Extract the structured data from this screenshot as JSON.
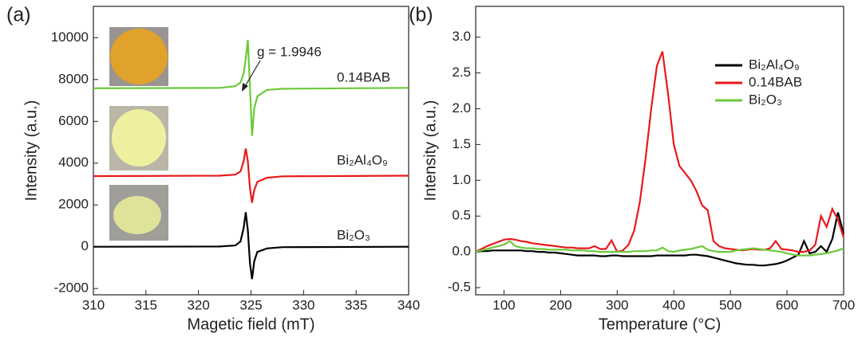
{
  "chart_data": [
    {
      "type": "line",
      "label": "(a)",
      "xlabel": "Magetic field (mT)",
      "ylabel": "Intensity (a.u.)",
      "annotation": "g = 1.9946",
      "xlim": [
        310,
        340
      ],
      "xticks": [
        310,
        315,
        320,
        325,
        330,
        335,
        340
      ],
      "ylim": [
        -2300,
        11500
      ],
      "yticks": [
        -2000,
        0,
        2000,
        4000,
        6000,
        8000,
        10000
      ],
      "x": [
        310,
        322,
        323.5,
        324.0,
        324.3,
        324.5,
        324.7,
        324.9,
        325.1,
        325.3,
        325.6,
        326.5,
        328,
        340
      ],
      "series": [
        {
          "name": "0.14BAB",
          "color": "#6cc93a",
          "values": [
            7580,
            7600,
            7680,
            7850,
            8300,
            9000,
            9900,
            7600,
            5300,
            6600,
            7200,
            7500,
            7560,
            7600
          ]
        },
        {
          "name": "Bi₂Al₄O₉",
          "color": "#e8191b",
          "values": [
            3380,
            3400,
            3450,
            3600,
            4100,
            4700,
            4100,
            2800,
            2100,
            2700,
            3100,
            3300,
            3370,
            3400
          ]
        },
        {
          "name": "Bi₂O₃",
          "color": "#000000",
          "values": [
            0,
            10,
            60,
            250,
            900,
            1650,
            800,
            -800,
            -1550,
            -700,
            -250,
            -80,
            -20,
            0
          ]
        }
      ]
    },
    {
      "type": "line",
      "label": "(b)",
      "xlabel": "Temperature (°C)",
      "ylabel": "Intensity (a.u.)",
      "legend": "upper right",
      "xlim": [
        50,
        700
      ],
      "xticks": [
        100,
        200,
        300,
        400,
        500,
        600,
        700
      ],
      "ylim": [
        -0.6,
        3.43
      ],
      "yticks": [
        -0.5,
        {
          "value": 0,
          "label": "0.0"
        },
        0.5,
        {
          "value": 1,
          "label": "1.0"
        },
        1.5,
        {
          "value": 2,
          "label": "2.0"
        },
        2.5,
        {
          "value": 3,
          "label": "3.0"
        }
      ],
      "x": [
        50,
        60,
        70,
        80,
        90,
        100,
        110,
        120,
        130,
        140,
        150,
        160,
        170,
        180,
        190,
        200,
        210,
        220,
        230,
        240,
        250,
        260,
        270,
        280,
        290,
        300,
        310,
        320,
        330,
        340,
        350,
        360,
        370,
        380,
        390,
        400,
        410,
        420,
        430,
        440,
        450,
        460,
        470,
        480,
        490,
        500,
        510,
        520,
        530,
        540,
        550,
        560,
        570,
        580,
        590,
        600,
        610,
        620,
        630,
        640,
        650,
        660,
        670,
        680,
        690,
        700
      ],
      "series": [
        {
          "name": "Bi₂Al₄O₉",
          "color": "#000000",
          "values": [
            0.0,
            0.01,
            0.01,
            0.02,
            0.02,
            0.02,
            0.02,
            0.02,
            0.02,
            0.01,
            0.01,
            0.0,
            0.0,
            -0.01,
            -0.01,
            -0.02,
            -0.03,
            -0.04,
            -0.05,
            -0.05,
            -0.05,
            -0.05,
            -0.06,
            -0.06,
            -0.05,
            -0.05,
            -0.06,
            -0.06,
            -0.06,
            -0.06,
            -0.06,
            -0.06,
            -0.05,
            -0.05,
            -0.05,
            -0.05,
            -0.05,
            -0.05,
            -0.04,
            -0.04,
            -0.05,
            -0.06,
            -0.08,
            -0.1,
            -0.12,
            -0.14,
            -0.16,
            -0.17,
            -0.18,
            -0.18,
            -0.19,
            -0.19,
            -0.18,
            -0.17,
            -0.15,
            -0.12,
            -0.08,
            -0.04,
            0.15,
            -0.02,
            0.0,
            0.08,
            0.0,
            0.18,
            0.55,
            0.25
          ]
        },
        {
          "name": "0.14BAB",
          "color": "#e8191b",
          "values": [
            0.0,
            0.04,
            0.08,
            0.11,
            0.14,
            0.17,
            0.18,
            0.17,
            0.15,
            0.14,
            0.12,
            0.11,
            0.1,
            0.09,
            0.08,
            0.07,
            0.06,
            0.06,
            0.05,
            0.05,
            0.05,
            0.08,
            0.04,
            0.04,
            0.16,
            0.0,
            0.02,
            0.1,
            0.3,
            0.7,
            1.3,
            2.0,
            2.6,
            2.8,
            2.2,
            1.5,
            1.2,
            1.1,
            1.0,
            0.85,
            0.65,
            0.58,
            0.15,
            0.08,
            0.05,
            0.04,
            0.03,
            0.02,
            0.03,
            0.04,
            0.03,
            0.03,
            0.05,
            0.15,
            0.04,
            0.03,
            0.02,
            0.0,
            0.0,
            0.02,
            0.1,
            0.5,
            0.35,
            0.6,
            0.45,
            0.2
          ]
        },
        {
          "name": "Bi₂O₃",
          "color": "#6cc93a",
          "values": [
            0.0,
            0.02,
            0.04,
            0.06,
            0.08,
            0.1,
            0.15,
            0.08,
            0.06,
            0.05,
            0.05,
            0.04,
            0.04,
            0.03,
            0.03,
            0.03,
            0.03,
            0.02,
            0.02,
            0.02,
            0.01,
            0.01,
            0.0,
            0.0,
            0.0,
            0.0,
            0.0,
            0.0,
            0.01,
            0.01,
            0.01,
            0.02,
            0.02,
            0.06,
            0.01,
            0.0,
            0.02,
            0.03,
            0.04,
            0.06,
            0.08,
            0.03,
            0.01,
            0.0,
            0.0,
            0.0,
            0.02,
            0.03,
            0.04,
            0.05,
            0.04,
            0.03,
            0.02,
            0.01,
            0.0,
            -0.02,
            -0.04,
            -0.05,
            -0.05,
            -0.05,
            -0.04,
            -0.03,
            -0.02,
            0.0,
            0.02,
            0.05
          ]
        }
      ]
    }
  ]
}
